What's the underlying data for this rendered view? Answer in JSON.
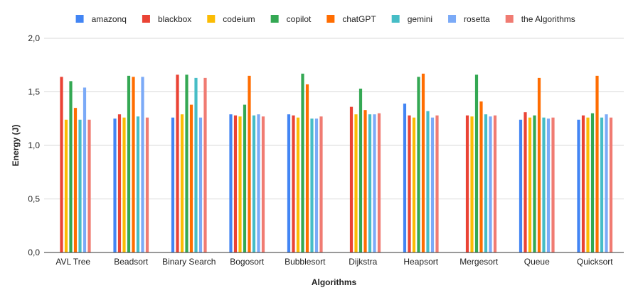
{
  "chart_data": {
    "type": "bar",
    "title": "",
    "xlabel": "Algorithms",
    "ylabel": "Energy (J)",
    "ylim": [
      0,
      2.0
    ],
    "yticks": [
      "0,0",
      "0,5",
      "1,0",
      "1,5",
      "2,0"
    ],
    "ytick_values": [
      0,
      0.5,
      1.0,
      1.5,
      2.0
    ],
    "grid": true,
    "legend_position": "top",
    "categories": [
      "AVL Tree",
      "Beadsort",
      "Binary Search",
      "Bogosort",
      "Bubblesort",
      "Dijkstra",
      "Heapsort",
      "Mergesort",
      "Queue",
      "Quicksort"
    ],
    "series": [
      {
        "name": "amazonq",
        "color": "#4285f4",
        "values": [
          null,
          1.25,
          1.26,
          1.29,
          1.29,
          null,
          1.39,
          null,
          1.24,
          1.24
        ]
      },
      {
        "name": "blackbox",
        "color": "#ea4335",
        "values": [
          1.64,
          1.29,
          1.66,
          1.28,
          1.28,
          1.36,
          1.28,
          1.28,
          1.31,
          1.28
        ]
      },
      {
        "name": "codeium",
        "color": "#fbbc04",
        "values": [
          1.24,
          1.26,
          1.29,
          1.27,
          1.26,
          1.29,
          1.26,
          1.27,
          1.26,
          1.26
        ]
      },
      {
        "name": "copilot",
        "color": "#34a853",
        "values": [
          1.6,
          1.65,
          1.66,
          1.38,
          1.67,
          1.53,
          1.64,
          1.66,
          1.28,
          1.3
        ]
      },
      {
        "name": "chatGPT",
        "color": "#ff6d01",
        "values": [
          1.35,
          1.64,
          1.38,
          1.65,
          1.57,
          1.33,
          1.67,
          1.41,
          1.63,
          1.65
        ]
      },
      {
        "name": "gemini",
        "color": "#46bdc6",
        "values": [
          1.24,
          1.27,
          1.63,
          1.28,
          1.25,
          1.29,
          1.32,
          1.29,
          1.26,
          1.26
        ]
      },
      {
        "name": "rosetta",
        "color": "#7baaf7",
        "values": [
          1.54,
          1.64,
          1.26,
          1.29,
          1.25,
          1.29,
          1.26,
          1.27,
          1.25,
          1.29
        ]
      },
      {
        "name": "the Algorithms",
        "color": "#f07b72",
        "values": [
          1.24,
          1.26,
          1.63,
          1.27,
          1.27,
          1.3,
          1.28,
          1.28,
          1.26,
          1.26
        ]
      }
    ]
  }
}
